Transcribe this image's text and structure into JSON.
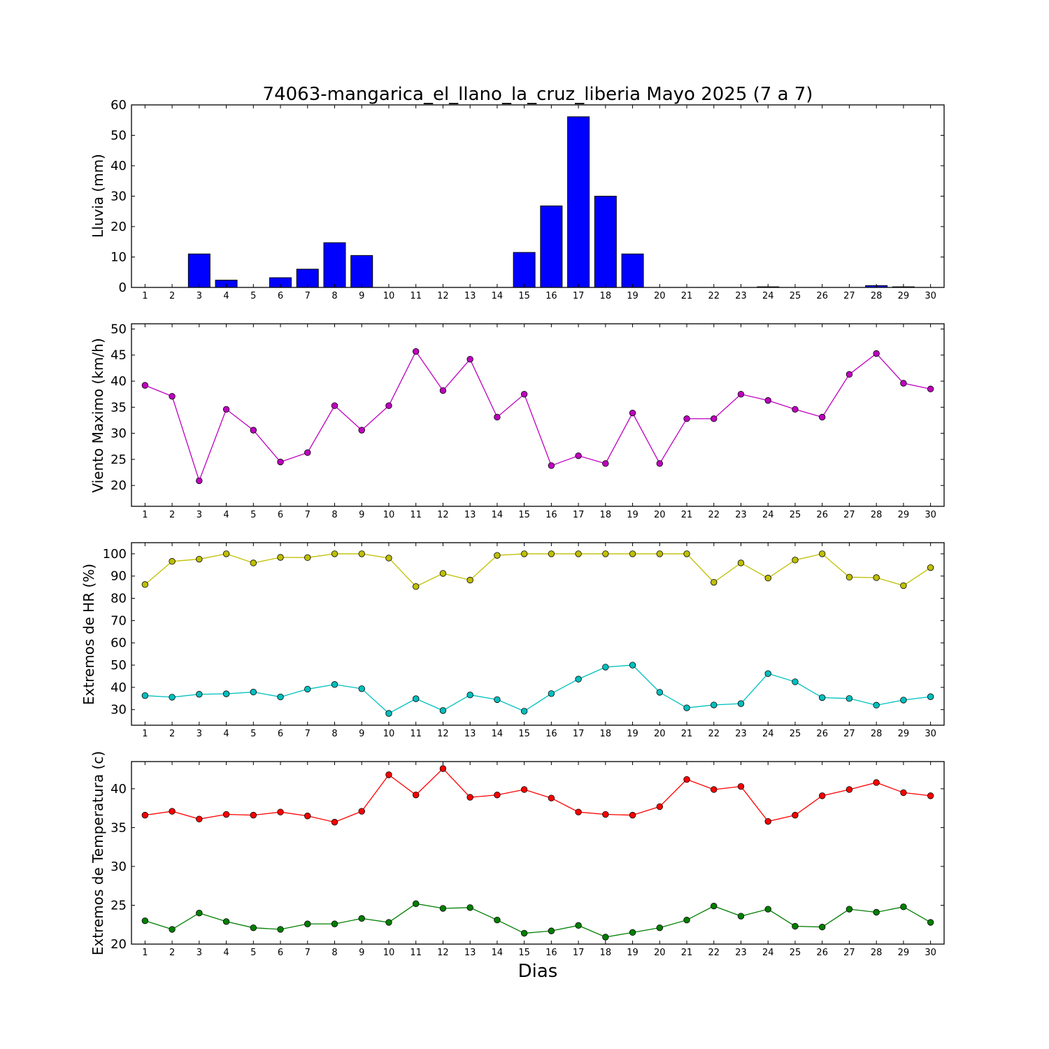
{
  "chart_data": [
    {
      "type": "bar",
      "title": "74063-mangarica_el_llano_la_cruz_liberia Mayo 2025  (7 a 7)",
      "ylabel": "Lluvia (mm)",
      "xlabel": "",
      "ylim": [
        0,
        60
      ],
      "yticks": [
        0,
        10,
        20,
        30,
        40,
        50,
        60
      ],
      "categories": [
        "1",
        "2",
        "3",
        "4",
        "5",
        "6",
        "7",
        "8",
        "9",
        "10",
        "11",
        "12",
        "13",
        "14",
        "15",
        "16",
        "17",
        "18",
        "19",
        "20",
        "21",
        "22",
        "23",
        "24",
        "25",
        "26",
        "27",
        "28",
        "29",
        "30"
      ],
      "values": [
        0,
        0,
        11.0,
        2.4,
        0,
        3.2,
        6.0,
        14.7,
        10.5,
        0,
        0,
        0,
        0,
        0,
        11.5,
        26.8,
        56.1,
        30.0,
        11.0,
        0,
        0,
        0,
        0,
        0.2,
        0,
        0,
        0,
        0.6,
        0.2,
        0
      ],
      "color": "#0000ff"
    },
    {
      "type": "line",
      "ylabel": "Viento Maximo (km/h)",
      "xlabel": "",
      "ylim": [
        16,
        51
      ],
      "yticks": [
        20,
        25,
        30,
        35,
        40,
        45,
        50
      ],
      "categories": [
        "1",
        "2",
        "3",
        "4",
        "5",
        "6",
        "7",
        "8",
        "9",
        "10",
        "11",
        "12",
        "13",
        "14",
        "15",
        "16",
        "17",
        "18",
        "19",
        "20",
        "21",
        "22",
        "23",
        "24",
        "25",
        "26",
        "27",
        "28",
        "29",
        "30"
      ],
      "series": [
        {
          "values": [
            39.2,
            37.1,
            20.9,
            34.6,
            30.6,
            24.5,
            26.3,
            35.3,
            30.6,
            35.3,
            45.7,
            38.2,
            44.2,
            33.1,
            37.5,
            23.8,
            25.7,
            24.2,
            33.9,
            24.2,
            32.8,
            32.8,
            37.5,
            36.3,
            34.6,
            33.1,
            41.3,
            45.3,
            39.6,
            38.5
          ],
          "color": "#bf00bf"
        }
      ]
    },
    {
      "type": "line",
      "ylabel": "Extremos de HR (%)",
      "xlabel": "",
      "ylim": [
        23,
        105
      ],
      "yticks": [
        30,
        40,
        50,
        60,
        70,
        80,
        90,
        100
      ],
      "categories": [
        "1",
        "2",
        "3",
        "4",
        "5",
        "6",
        "7",
        "8",
        "9",
        "10",
        "11",
        "12",
        "13",
        "14",
        "15",
        "16",
        "17",
        "18",
        "19",
        "20",
        "21",
        "22",
        "23",
        "24",
        "25",
        "26",
        "27",
        "28",
        "29",
        "30"
      ],
      "series": [
        {
          "values": [
            86.2,
            96.6,
            97.6,
            100,
            95.9,
            98.4,
            98.3,
            100,
            100,
            98.1,
            85.3,
            91.2,
            88.2,
            99.3,
            100,
            100,
            100,
            100,
            100,
            100,
            100,
            87.2,
            95.9,
            89.1,
            97.2,
            100,
            89.5,
            89.3,
            85.7,
            93.8
          ],
          "color": "#bfbf00"
        },
        {
          "values": [
            36.3,
            35.6,
            36.9,
            37.1,
            37.9,
            35.7,
            39.2,
            41.3,
            39.4,
            28.3,
            34.9,
            29.6,
            36.6,
            34.5,
            29.3,
            37.2,
            43.7,
            49.1,
            50.0,
            37.8,
            30.8,
            32.1,
            32.7,
            46.2,
            42.5,
            35.4,
            35.0,
            32.0,
            34.3,
            35.8
          ],
          "color": "#00bfbf"
        }
      ]
    },
    {
      "type": "line",
      "ylabel": "Extremos de Temperatura (c)",
      "xlabel": "Dias",
      "ylim": [
        20,
        43.5
      ],
      "yticks": [
        20,
        25,
        30,
        35,
        40
      ],
      "categories": [
        "1",
        "2",
        "3",
        "4",
        "5",
        "6",
        "7",
        "8",
        "9",
        "10",
        "11",
        "12",
        "13",
        "14",
        "15",
        "16",
        "17",
        "18",
        "19",
        "20",
        "21",
        "22",
        "23",
        "24",
        "25",
        "26",
        "27",
        "28",
        "29",
        "30"
      ],
      "series": [
        {
          "values": [
            36.6,
            37.1,
            36.1,
            36.7,
            36.6,
            37.0,
            36.5,
            35.7,
            37.1,
            41.8,
            39.2,
            42.6,
            38.9,
            39.2,
            39.9,
            38.8,
            37.0,
            36.7,
            36.6,
            37.7,
            41.2,
            39.9,
            40.3,
            35.8,
            36.6,
            39.1,
            39.9,
            40.8,
            39.5,
            39.1
          ],
          "color": "#ff0000"
        },
        {
          "values": [
            23.0,
            21.9,
            24.0,
            22.9,
            22.1,
            21.9,
            22.6,
            22.6,
            23.3,
            22.8,
            25.2,
            24.6,
            24.7,
            23.1,
            21.4,
            21.7,
            22.4,
            20.9,
            21.5,
            22.1,
            23.1,
            24.9,
            23.6,
            24.5,
            22.3,
            22.2,
            24.5,
            24.1,
            24.8,
            22.8
          ],
          "color": "#007f00"
        }
      ]
    }
  ]
}
